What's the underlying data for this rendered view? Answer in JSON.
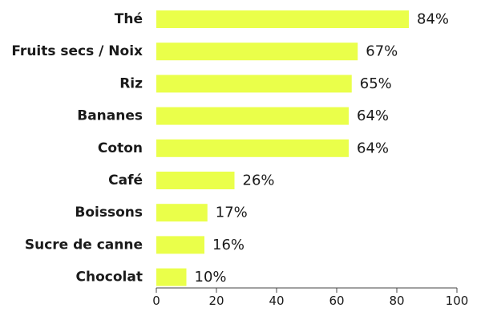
{
  "chart_data": {
    "type": "bar",
    "orientation": "horizontal",
    "categories": [
      "Thé",
      "Fruits secs / Noix",
      "Riz",
      "Bananes",
      "Coton",
      "Café",
      "Boissons",
      "Sucre de canne",
      "Chocolat"
    ],
    "values": [
      84,
      67,
      65,
      64,
      64,
      26,
      17,
      16,
      10
    ],
    "value_labels": [
      "84%",
      "67%",
      "65%",
      "64%",
      "64%",
      "26%",
      "17%",
      "16%",
      "10%"
    ],
    "xlim": [
      0,
      100
    ],
    "xticks": [
      0,
      20,
      40,
      60,
      80,
      100
    ],
    "xtick_labels": [
      "0",
      "20",
      "40",
      "60",
      "80",
      "100"
    ],
    "grid": false,
    "bar_color": "#eaff4a",
    "text_color": "#1a1a1a"
  }
}
